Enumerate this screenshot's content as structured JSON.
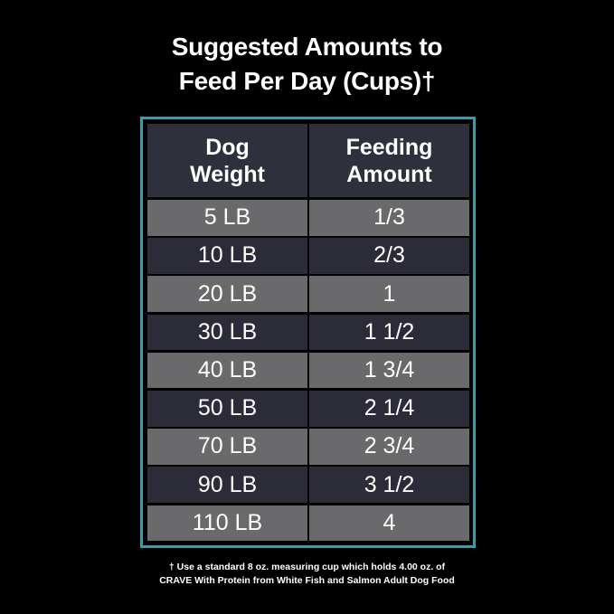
{
  "title": [
    "Suggested Amounts to",
    "Feed Per Day (Cups)†"
  ],
  "table": {
    "header": [
      [
        "Dog",
        "Weight"
      ],
      [
        "Feeding",
        "Amount"
      ]
    ],
    "rows": [
      [
        "5 LB",
        "1/3"
      ],
      [
        "10 LB",
        "2/3"
      ],
      [
        "20 LB",
        "1"
      ],
      [
        "30 LB",
        "1 1/2"
      ],
      [
        "40 LB",
        "1 3/4"
      ],
      [
        "50 LB",
        "2 1/4"
      ],
      [
        "70 LB",
        "2 3/4"
      ],
      [
        "90 LB",
        "3 1/2"
      ],
      [
        "110 LB",
        "4"
      ]
    ]
  },
  "footnote": [
    "† Use a standard 8 oz. measuring cup which holds 4.00 oz. of",
    "CRAVE With Protein from White Fish and Salmon Adult Dog Food"
  ]
}
